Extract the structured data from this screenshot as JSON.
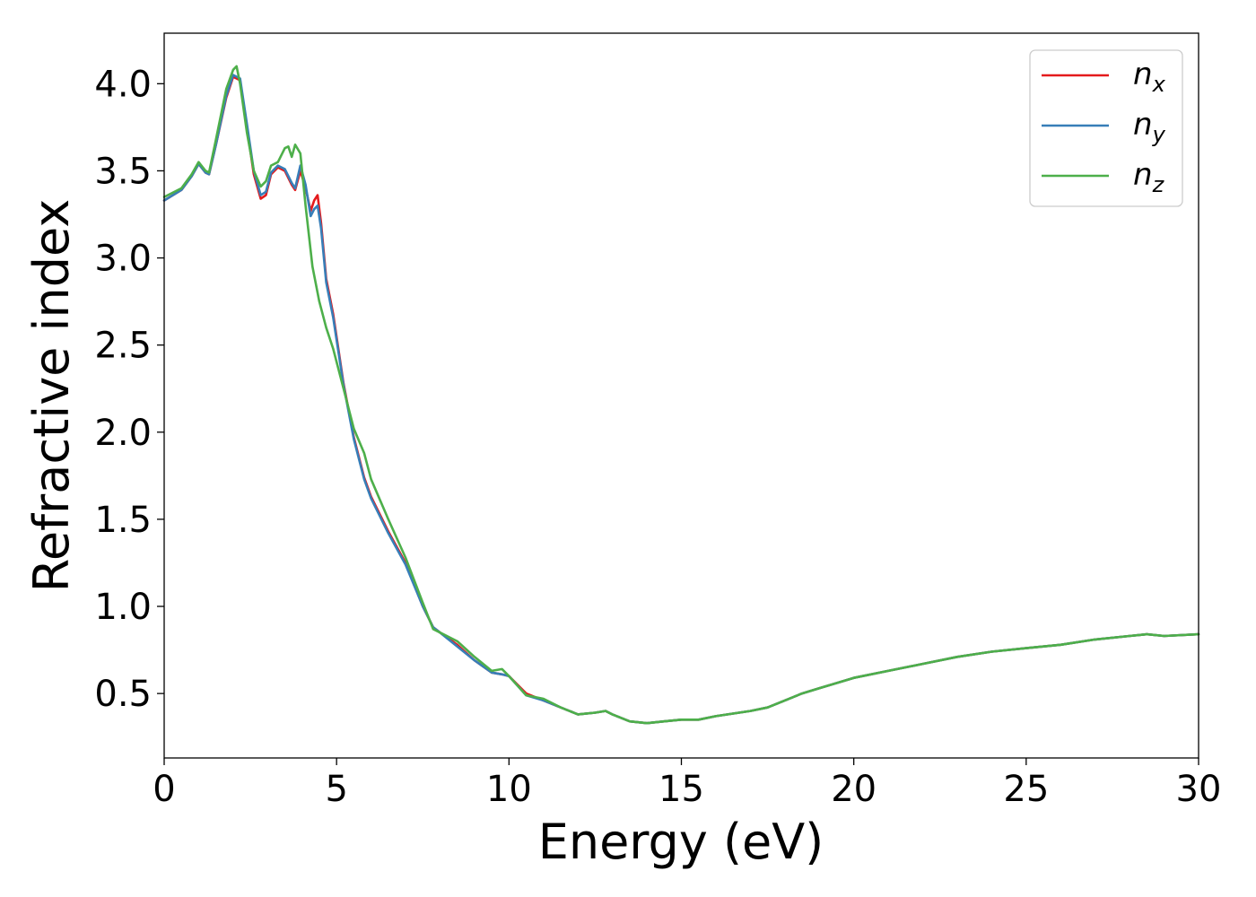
{
  "chart_data": {
    "type": "line",
    "xlabel": "Energy (eV)",
    "ylabel": "Refractive index",
    "xlim": [
      0,
      30
    ],
    "ylim": [
      0.13,
      4.29
    ],
    "xticks": [
      0,
      5,
      10,
      15,
      20,
      25,
      30
    ],
    "xtick_labels": [
      "0",
      "5",
      "10",
      "15",
      "20",
      "25",
      "30"
    ],
    "yticks": [
      0.5,
      1.0,
      1.5,
      2.0,
      2.5,
      3.0,
      3.5,
      4.0
    ],
    "ytick_labels": [
      "0.5",
      "1.0",
      "1.5",
      "2.0",
      "2.5",
      "3.0",
      "3.5",
      "4.0"
    ],
    "grid": false,
    "legend_position": "top-right",
    "series": [
      {
        "name": "n_x",
        "label_main": "n",
        "label_sub": "x",
        "color": "#e41a1c",
        "x": [
          0,
          0.5,
          0.8,
          1.0,
          1.2,
          1.3,
          1.5,
          1.8,
          2.0,
          2.2,
          2.4,
          2.6,
          2.8,
          2.95,
          3.1,
          3.3,
          3.5,
          3.7,
          3.8,
          3.95,
          4.1,
          4.25,
          4.35,
          4.45,
          4.55,
          4.7,
          4.9,
          5.2,
          5.5,
          5.8,
          6.0,
          6.5,
          7.0,
          7.5,
          7.8,
          8.0,
          8.5,
          9.0,
          9.5,
          9.8,
          10.0,
          10.5,
          11.0,
          11.5,
          12.0,
          12.5,
          12.8,
          13.0,
          13.5,
          14.0,
          14.5,
          15.0,
          15.5,
          16.0,
          17.0,
          17.5,
          18.0,
          18.5,
          19.0,
          20.0,
          21.0,
          22.0,
          23.0,
          24.0,
          25.0,
          26.0,
          27.0,
          28.0,
          28.5,
          29.0,
          30.0
        ],
        "y": [
          3.33,
          3.39,
          3.47,
          3.54,
          3.49,
          3.48,
          3.65,
          3.92,
          4.04,
          4.02,
          3.75,
          3.48,
          3.34,
          3.36,
          3.48,
          3.52,
          3.5,
          3.42,
          3.39,
          3.5,
          3.4,
          3.27,
          3.33,
          3.36,
          3.2,
          2.88,
          2.68,
          2.28,
          1.97,
          1.74,
          1.63,
          1.43,
          1.25,
          1.0,
          0.88,
          0.85,
          0.78,
          0.69,
          0.62,
          0.61,
          0.6,
          0.5,
          0.46,
          0.42,
          0.38,
          0.39,
          0.4,
          0.38,
          0.34,
          0.33,
          0.34,
          0.35,
          0.35,
          0.37,
          0.4,
          0.42,
          0.46,
          0.5,
          0.53,
          0.59,
          0.63,
          0.67,
          0.71,
          0.74,
          0.76,
          0.78,
          0.81,
          0.83,
          0.84,
          0.83,
          0.84
        ]
      },
      {
        "name": "n_y",
        "label_main": "n",
        "label_sub": "y",
        "color": "#377eb8",
        "x": [
          0,
          0.5,
          0.8,
          1.0,
          1.2,
          1.3,
          1.5,
          1.8,
          2.0,
          2.2,
          2.4,
          2.6,
          2.8,
          2.95,
          3.1,
          3.3,
          3.5,
          3.7,
          3.8,
          3.95,
          4.1,
          4.25,
          4.35,
          4.45,
          4.55,
          4.7,
          4.9,
          5.2,
          5.5,
          5.8,
          6.0,
          6.5,
          7.0,
          7.5,
          7.8,
          8.0,
          8.5,
          9.0,
          9.5,
          9.8,
          10.0,
          10.5,
          11.0,
          11.5,
          12.0,
          12.5,
          12.8,
          13.0,
          13.5,
          14.0,
          14.5,
          15.0,
          15.5,
          16.0,
          17.0,
          17.5,
          18.0,
          18.5,
          19.0,
          20.0,
          21.0,
          22.0,
          23.0,
          24.0,
          25.0,
          26.0,
          27.0,
          28.0,
          28.5,
          29.0,
          30.0
        ],
        "y": [
          3.33,
          3.39,
          3.47,
          3.54,
          3.49,
          3.48,
          3.65,
          3.93,
          4.05,
          4.03,
          3.77,
          3.5,
          3.36,
          3.38,
          3.49,
          3.53,
          3.51,
          3.43,
          3.4,
          3.53,
          3.42,
          3.24,
          3.28,
          3.3,
          3.17,
          2.86,
          2.66,
          2.27,
          1.96,
          1.73,
          1.62,
          1.42,
          1.24,
          1.0,
          0.88,
          0.85,
          0.77,
          0.69,
          0.62,
          0.61,
          0.6,
          0.49,
          0.46,
          0.42,
          0.38,
          0.39,
          0.4,
          0.38,
          0.34,
          0.33,
          0.34,
          0.35,
          0.35,
          0.37,
          0.4,
          0.42,
          0.46,
          0.5,
          0.53,
          0.59,
          0.63,
          0.67,
          0.71,
          0.74,
          0.76,
          0.78,
          0.81,
          0.83,
          0.84,
          0.83,
          0.84
        ]
      },
      {
        "name": "n_z",
        "label_main": "n",
        "label_sub": "z",
        "color": "#4daf4a",
        "x": [
          0,
          0.5,
          0.8,
          1.0,
          1.2,
          1.3,
          1.5,
          1.8,
          2.0,
          2.1,
          2.2,
          2.4,
          2.6,
          2.8,
          2.95,
          3.1,
          3.3,
          3.5,
          3.6,
          3.7,
          3.8,
          3.95,
          4.1,
          4.3,
          4.5,
          4.7,
          4.9,
          5.2,
          5.5,
          5.8,
          6.0,
          6.5,
          7.0,
          7.5,
          7.8,
          8.0,
          8.5,
          9.0,
          9.5,
          9.8,
          10.0,
          10.5,
          11.0,
          11.5,
          12.0,
          12.5,
          12.8,
          13.0,
          13.5,
          14.0,
          14.5,
          15.0,
          15.5,
          16.0,
          17.0,
          17.5,
          18.0,
          18.5,
          19.0,
          20.0,
          21.0,
          22.0,
          23.0,
          24.0,
          25.0,
          26.0,
          27.0,
          28.0,
          28.5,
          29.0,
          30.0
        ],
        "y": [
          3.35,
          3.4,
          3.48,
          3.55,
          3.5,
          3.49,
          3.68,
          3.97,
          4.08,
          4.1,
          4.0,
          3.72,
          3.5,
          3.41,
          3.44,
          3.53,
          3.55,
          3.63,
          3.64,
          3.58,
          3.65,
          3.6,
          3.3,
          2.95,
          2.75,
          2.6,
          2.48,
          2.25,
          2.02,
          1.88,
          1.73,
          1.5,
          1.28,
          1.02,
          0.87,
          0.85,
          0.8,
          0.71,
          0.63,
          0.64,
          0.6,
          0.49,
          0.47,
          0.42,
          0.38,
          0.39,
          0.4,
          0.38,
          0.34,
          0.33,
          0.34,
          0.35,
          0.35,
          0.37,
          0.4,
          0.42,
          0.46,
          0.5,
          0.53,
          0.59,
          0.63,
          0.67,
          0.71,
          0.74,
          0.76,
          0.78,
          0.81,
          0.83,
          0.84,
          0.83,
          0.84
        ]
      }
    ]
  }
}
